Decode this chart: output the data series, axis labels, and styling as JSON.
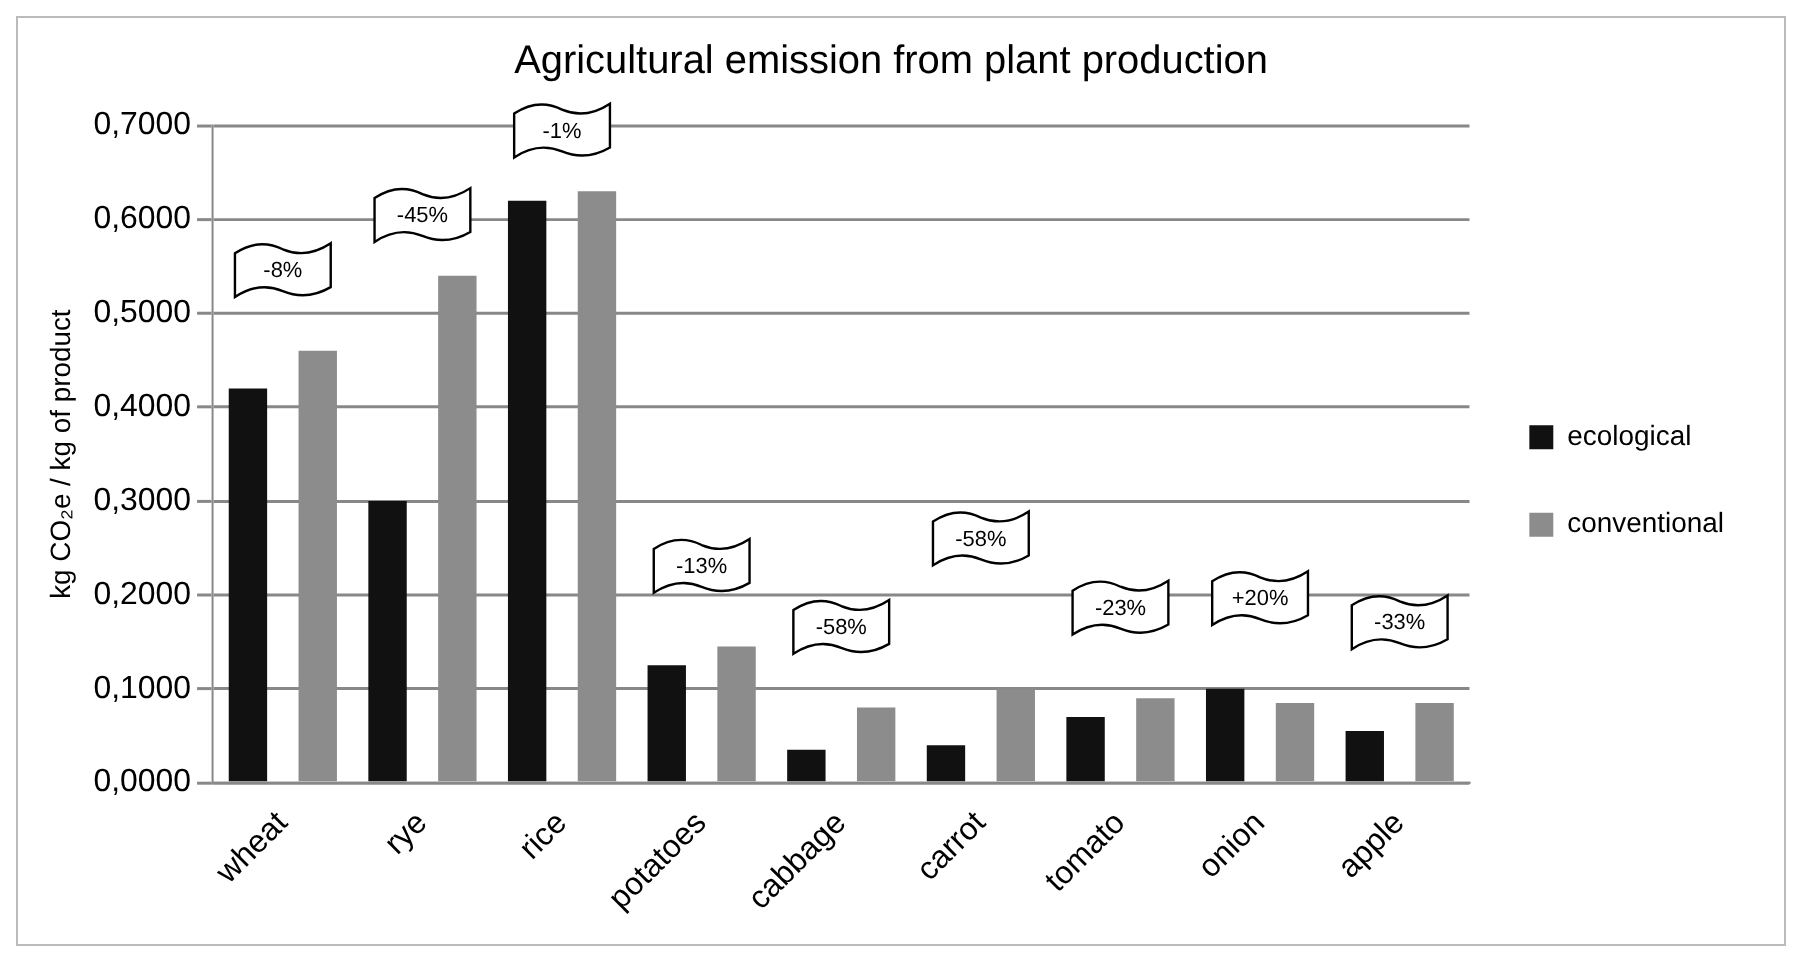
{
  "chart_data": {
    "type": "bar",
    "title": "Agricultural emission from plant production",
    "ylabel": "kg CO₂e / kg of product",
    "categories": [
      "wheat",
      "rye",
      "rice",
      "potatoes",
      "cabbage",
      "carrot",
      "tomato",
      "onion",
      "apple"
    ],
    "series": [
      {
        "name": "ecological",
        "color": "#111111",
        "values": [
          0.42,
          0.3,
          0.62,
          0.125,
          0.035,
          0.04,
          0.07,
          0.1,
          0.055
        ]
      },
      {
        "name": "conventional",
        "color": "#8c8c8c",
        "values": [
          0.46,
          0.54,
          0.63,
          0.145,
          0.08,
          0.1,
          0.09,
          0.085,
          0.085
        ]
      }
    ],
    "ylim": [
      0,
      0.7
    ],
    "yticks": [
      {
        "value": 0,
        "label": "0,0000"
      },
      {
        "value": 0.1,
        "label": "0,1000"
      },
      {
        "value": 0.2,
        "label": "0,2000"
      },
      {
        "value": 0.3,
        "label": "0,3000"
      },
      {
        "value": 0.4,
        "label": "0,4000"
      },
      {
        "value": 0.5,
        "label": "0,5000"
      },
      {
        "value": 0.6,
        "label": "0,6000"
      },
      {
        "value": 0.7,
        "label": "0,7000"
      }
    ],
    "grid": "y",
    "legend": "right",
    "annotations": [
      "-8%",
      "-45%",
      "-1%",
      "-13%",
      "-58%",
      "-58%",
      "-23%",
      "+20%",
      "-33%"
    ]
  }
}
